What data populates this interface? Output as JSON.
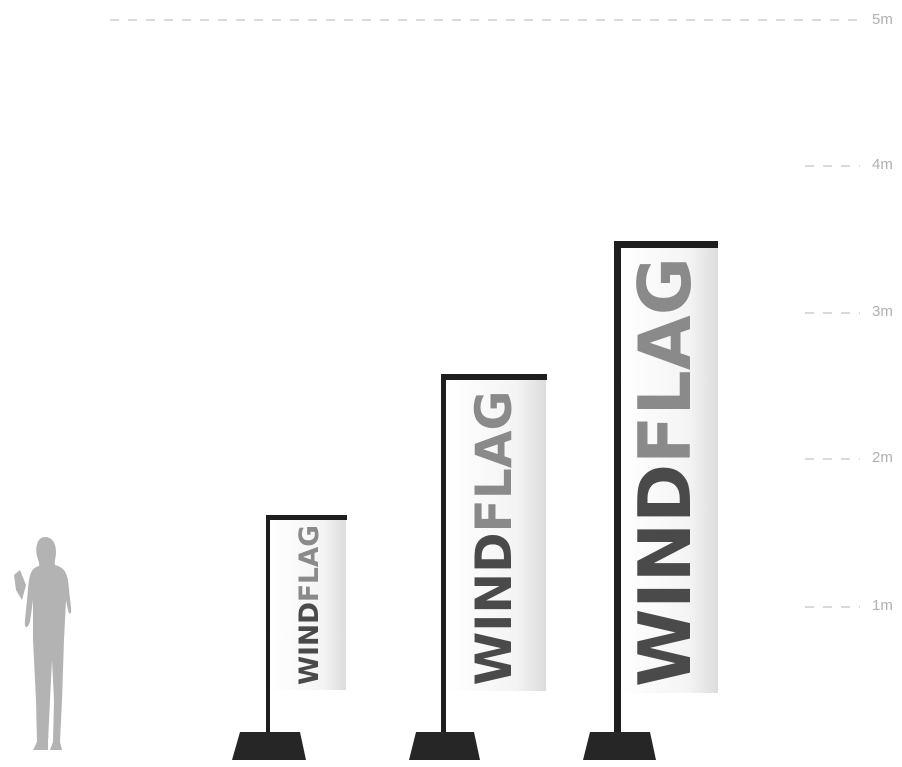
{
  "scale": {
    "labels": [
      "5m",
      "4m",
      "3m",
      "2m",
      "1m"
    ]
  },
  "flags": [
    {
      "text_dark": "WIND",
      "text_light": "FLAG"
    },
    {
      "text_dark": "WIND",
      "text_light": "FLAG"
    },
    {
      "text_dark": "WIND",
      "text_light": "FLAG"
    }
  ]
}
